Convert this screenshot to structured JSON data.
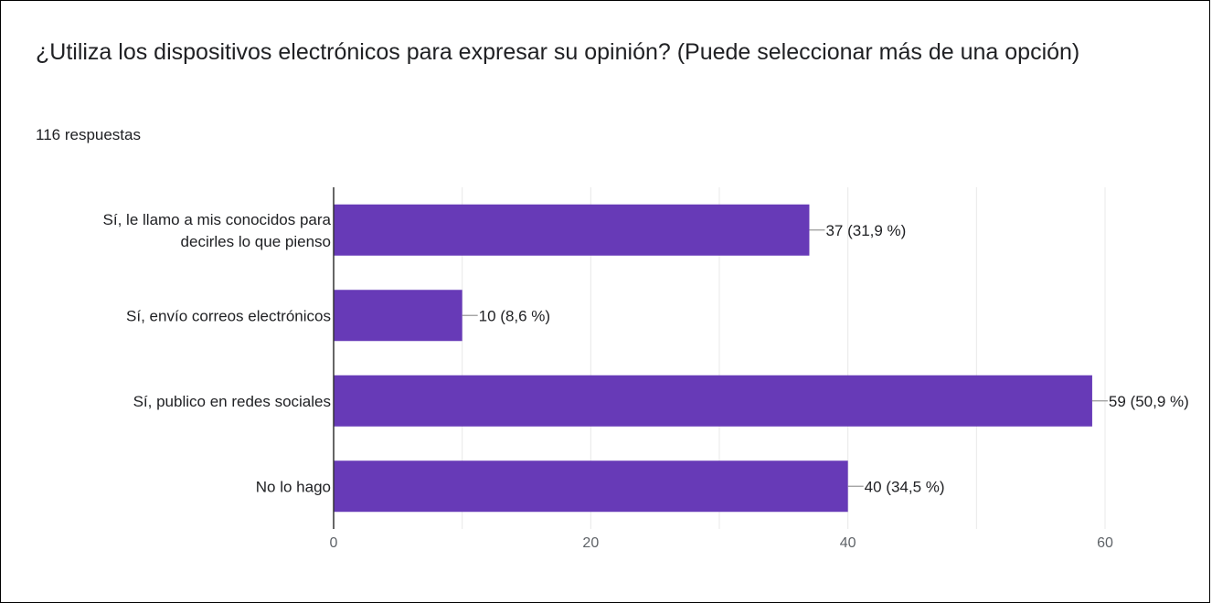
{
  "header": {
    "title": "¿Utiliza los dispositivos electrónicos para expresar su opinión? (Puede seleccionar más de una opción)",
    "responses": "116 respuestas"
  },
  "colors": {
    "bar": "#673ab7",
    "grid": "#e8e8e8",
    "axis": "#333333",
    "text": "#202124",
    "tick_text": "#5f6368"
  },
  "chart_data": {
    "type": "bar",
    "orientation": "horizontal",
    "categories": [
      [
        "Sí, le llamo a mis conocidos para",
        "decirles lo que pienso"
      ],
      [
        "Sí, envío correos electrónicos"
      ],
      [
        "Sí, publico en redes sociales"
      ],
      [
        "No lo hago"
      ]
    ],
    "values": [
      37,
      10,
      59,
      40
    ],
    "data_labels": [
      "37 (31,9 %)",
      "10 (8,6 %)",
      "59 (50,9 %)",
      "40 (34,5 %)"
    ],
    "xlim": [
      0,
      60
    ],
    "x_ticks": [
      "0",
      "20",
      "40",
      "60"
    ],
    "grid": true
  }
}
